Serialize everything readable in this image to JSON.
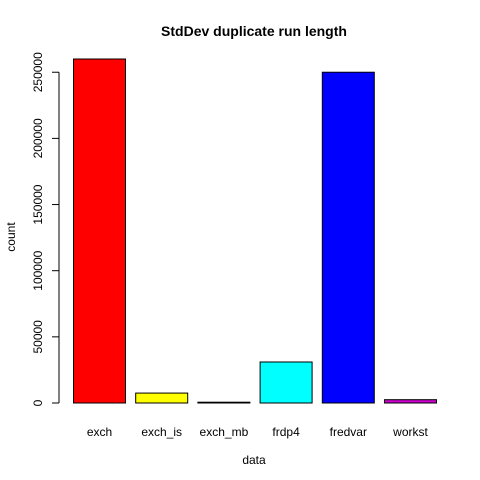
{
  "chart_data": {
    "type": "bar",
    "title": "StdDev duplicate run length",
    "xlabel": "data",
    "ylabel": "count",
    "categories": [
      "exch",
      "exch_is",
      "exch_mb",
      "frdp4",
      "fredvar",
      "workst"
    ],
    "values": [
      260000,
      7500,
      500,
      31000,
      250000,
      2500
    ],
    "colors": [
      "#ff0000",
      "#ffff00",
      "#000000",
      "#00ffff",
      "#0000ff",
      "#cc00cc"
    ],
    "ylim": [
      0,
      260000
    ],
    "yticks": [
      0,
      50000,
      100000,
      150000,
      200000,
      250000
    ],
    "ytick_labels": [
      "0",
      "50000",
      "100000",
      "150000",
      "200000",
      "250000"
    ],
    "grid": false,
    "legend": "none"
  }
}
